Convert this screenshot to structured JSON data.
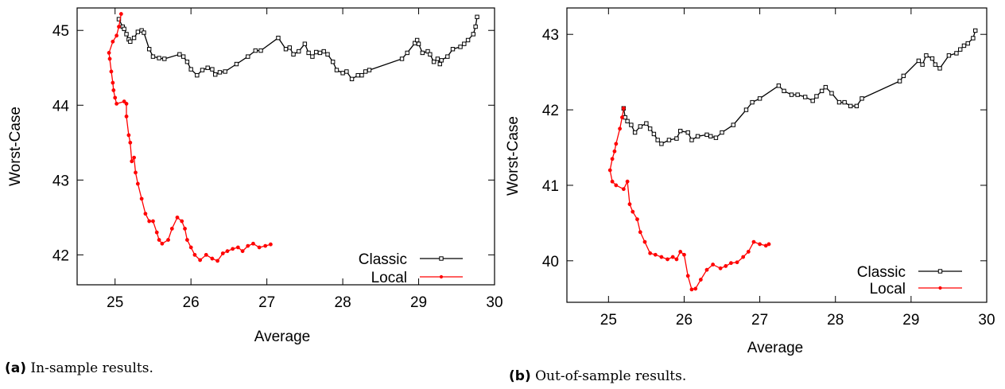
{
  "chart_data": [
    {
      "type": "line",
      "caption_label": "(a)",
      "caption_text": "In-sample results.",
      "xlabel": "Average",
      "ylabel": "Worst-Case",
      "xlim": [
        24.5,
        30
      ],
      "ylim": [
        41.6,
        45.3
      ],
      "xticks": [
        25,
        26,
        27,
        28,
        29,
        30
      ],
      "yticks": [
        42,
        43,
        44,
        45
      ],
      "legend_position": "bottom-right",
      "series": [
        {
          "name": "Classic",
          "color": "#000000",
          "marker": "square",
          "points": [
            [
              25.05,
              45.15
            ],
            [
              25.1,
              45.05
            ],
            [
              25.12,
              45.02
            ],
            [
              25.15,
              44.95
            ],
            [
              25.18,
              44.88
            ],
            [
              25.2,
              44.85
            ],
            [
              25.25,
              44.9
            ],
            [
              25.3,
              44.98
            ],
            [
              25.35,
              45.0
            ],
            [
              25.38,
              44.97
            ],
            [
              25.45,
              44.75
            ],
            [
              25.5,
              44.65
            ],
            [
              25.58,
              44.63
            ],
            [
              25.65,
              44.62
            ],
            [
              25.85,
              44.68
            ],
            [
              25.9,
              44.65
            ],
            [
              25.95,
              44.58
            ],
            [
              26.0,
              44.48
            ],
            [
              26.08,
              44.4
            ],
            [
              26.15,
              44.47
            ],
            [
              26.22,
              44.5
            ],
            [
              26.28,
              44.48
            ],
            [
              26.32,
              44.41
            ],
            [
              26.38,
              44.44
            ],
            [
              26.45,
              44.45
            ],
            [
              26.6,
              44.55
            ],
            [
              26.75,
              44.65
            ],
            [
              26.85,
              44.73
            ],
            [
              26.92,
              44.73
            ],
            [
              27.15,
              44.9
            ],
            [
              27.25,
              44.75
            ],
            [
              27.3,
              44.77
            ],
            [
              27.35,
              44.68
            ],
            [
              27.42,
              44.72
            ],
            [
              27.5,
              44.82
            ],
            [
              27.55,
              44.7
            ],
            [
              27.6,
              44.65
            ],
            [
              27.65,
              44.71
            ],
            [
              27.7,
              44.7
            ],
            [
              27.75,
              44.72
            ],
            [
              27.8,
              44.68
            ],
            [
              27.87,
              44.58
            ],
            [
              27.92,
              44.47
            ],
            [
              28.0,
              44.43
            ],
            [
              28.05,
              44.45
            ],
            [
              28.12,
              44.35
            ],
            [
              28.2,
              44.4
            ],
            [
              28.25,
              44.4
            ],
            [
              28.3,
              44.45
            ],
            [
              28.35,
              44.47
            ],
            [
              28.78,
              44.62
            ],
            [
              28.85,
              44.7
            ],
            [
              28.95,
              44.83
            ],
            [
              28.98,
              44.87
            ],
            [
              29.0,
              44.82
            ],
            [
              29.05,
              44.7
            ],
            [
              29.12,
              44.72
            ],
            [
              29.15,
              44.68
            ],
            [
              29.2,
              44.58
            ],
            [
              29.25,
              44.62
            ],
            [
              29.28,
              44.55
            ],
            [
              29.3,
              44.6
            ],
            [
              29.38,
              44.65
            ],
            [
              29.45,
              44.75
            ],
            [
              29.55,
              44.78
            ],
            [
              29.6,
              44.82
            ],
            [
              29.65,
              44.87
            ],
            [
              29.72,
              44.95
            ],
            [
              29.75,
              45.05
            ],
            [
              29.77,
              45.18
            ]
          ]
        },
        {
          "name": "Local",
          "color": "#ff0000",
          "marker": "circle",
          "points": [
            [
              25.08,
              45.22
            ],
            [
              25.05,
              45.05
            ],
            [
              25.02,
              44.93
            ],
            [
              24.97,
              44.85
            ],
            [
              24.92,
              44.7
            ],
            [
              24.93,
              44.62
            ],
            [
              24.95,
              44.45
            ],
            [
              24.97,
              44.3
            ],
            [
              24.98,
              44.2
            ],
            [
              25.0,
              44.1
            ],
            [
              25.02,
              44.02
            ],
            [
              25.12,
              44.05
            ],
            [
              25.15,
              44.02
            ],
            [
              25.15,
              43.85
            ],
            [
              25.18,
              43.6
            ],
            [
              25.2,
              43.5
            ],
            [
              25.22,
              43.25
            ],
            [
              25.25,
              43.3
            ],
            [
              25.27,
              43.1
            ],
            [
              25.3,
              42.95
            ],
            [
              25.35,
              42.75
            ],
            [
              25.4,
              42.55
            ],
            [
              25.45,
              42.45
            ],
            [
              25.5,
              42.45
            ],
            [
              25.55,
              42.3
            ],
            [
              25.58,
              42.2
            ],
            [
              25.62,
              42.15
            ],
            [
              25.7,
              42.2
            ],
            [
              25.75,
              42.35
            ],
            [
              25.82,
              42.5
            ],
            [
              25.88,
              42.45
            ],
            [
              25.92,
              42.35
            ],
            [
              25.95,
              42.2
            ],
            [
              26.0,
              42.1
            ],
            [
              26.05,
              42.0
            ],
            [
              26.12,
              41.93
            ],
            [
              26.2,
              42.0
            ],
            [
              26.28,
              41.95
            ],
            [
              26.35,
              41.92
            ],
            [
              26.42,
              42.02
            ],
            [
              26.48,
              42.05
            ],
            [
              26.55,
              42.08
            ],
            [
              26.62,
              42.1
            ],
            [
              26.68,
              42.05
            ],
            [
              26.75,
              42.12
            ],
            [
              26.82,
              42.15
            ],
            [
              26.9,
              42.1
            ],
            [
              26.98,
              42.12
            ],
            [
              27.05,
              42.14
            ]
          ]
        }
      ]
    },
    {
      "type": "line",
      "caption_label": "(b)",
      "caption_text": "Out-of-sample results.",
      "xlabel": "Average",
      "ylabel": "Worst-Case",
      "xlim": [
        24.45,
        30
      ],
      "ylim": [
        39.45,
        43.35
      ],
      "xticks": [
        25,
        26,
        27,
        28,
        29,
        30
      ],
      "yticks": [
        40,
        41,
        42,
        43
      ],
      "legend_position": "bottom-right",
      "series": [
        {
          "name": "Classic",
          "color": "#000000",
          "marker": "square",
          "points": [
            [
              25.2,
              42.02
            ],
            [
              25.22,
              41.9
            ],
            [
              25.25,
              41.85
            ],
            [
              25.3,
              41.8
            ],
            [
              25.35,
              41.7
            ],
            [
              25.42,
              41.78
            ],
            [
              25.5,
              41.82
            ],
            [
              25.55,
              41.75
            ],
            [
              25.6,
              41.68
            ],
            [
              25.65,
              41.6
            ],
            [
              25.7,
              41.55
            ],
            [
              25.8,
              41.6
            ],
            [
              25.9,
              41.62
            ],
            [
              25.95,
              41.72
            ],
            [
              26.05,
              41.7
            ],
            [
              26.1,
              41.6
            ],
            [
              26.18,
              41.65
            ],
            [
              26.3,
              41.67
            ],
            [
              26.35,
              41.65
            ],
            [
              26.42,
              41.63
            ],
            [
              26.5,
              41.7
            ],
            [
              26.65,
              41.8
            ],
            [
              26.82,
              42.0
            ],
            [
              26.9,
              42.1
            ],
            [
              27.0,
              42.15
            ],
            [
              27.25,
              42.32
            ],
            [
              27.32,
              42.25
            ],
            [
              27.42,
              42.2
            ],
            [
              27.5,
              42.2
            ],
            [
              27.6,
              42.17
            ],
            [
              27.7,
              42.12
            ],
            [
              27.75,
              42.18
            ],
            [
              27.82,
              42.25
            ],
            [
              27.87,
              42.3
            ],
            [
              27.95,
              42.22
            ],
            [
              28.05,
              42.1
            ],
            [
              28.12,
              42.1
            ],
            [
              28.2,
              42.05
            ],
            [
              28.28,
              42.05
            ],
            [
              28.35,
              42.15
            ],
            [
              28.85,
              42.38
            ],
            [
              28.9,
              42.45
            ],
            [
              29.1,
              42.65
            ],
            [
              29.15,
              42.6
            ],
            [
              29.2,
              42.72
            ],
            [
              29.28,
              42.68
            ],
            [
              29.32,
              42.6
            ],
            [
              29.38,
              42.55
            ],
            [
              29.5,
              42.72
            ],
            [
              29.6,
              42.75
            ],
            [
              29.65,
              42.8
            ],
            [
              29.7,
              42.85
            ],
            [
              29.75,
              42.88
            ],
            [
              29.82,
              42.95
            ],
            [
              29.85,
              43.05
            ]
          ]
        },
        {
          "name": "Local",
          "color": "#ff0000",
          "marker": "circle",
          "points": [
            [
              25.2,
              42.02
            ],
            [
              25.18,
              41.9
            ],
            [
              25.15,
              41.75
            ],
            [
              25.1,
              41.55
            ],
            [
              25.08,
              41.45
            ],
            [
              25.05,
              41.35
            ],
            [
              25.02,
              41.2
            ],
            [
              25.05,
              41.05
            ],
            [
              25.1,
              41.0
            ],
            [
              25.2,
              40.95
            ],
            [
              25.25,
              41.05
            ],
            [
              25.28,
              40.75
            ],
            [
              25.32,
              40.65
            ],
            [
              25.38,
              40.55
            ],
            [
              25.42,
              40.38
            ],
            [
              25.48,
              40.25
            ],
            [
              25.55,
              40.1
            ],
            [
              25.62,
              40.08
            ],
            [
              25.7,
              40.05
            ],
            [
              25.78,
              40.02
            ],
            [
              25.85,
              40.05
            ],
            [
              25.9,
              40.02
            ],
            [
              25.95,
              40.12
            ],
            [
              26.0,
              40.08
            ],
            [
              26.05,
              39.8
            ],
            [
              26.1,
              39.62
            ],
            [
              26.15,
              39.63
            ],
            [
              26.22,
              39.75
            ],
            [
              26.3,
              39.88
            ],
            [
              26.38,
              39.95
            ],
            [
              26.48,
              39.9
            ],
            [
              26.55,
              39.93
            ],
            [
              26.62,
              39.97
            ],
            [
              26.7,
              39.98
            ],
            [
              26.78,
              40.05
            ],
            [
              26.85,
              40.12
            ],
            [
              26.92,
              40.25
            ],
            [
              27.0,
              40.22
            ],
            [
              27.08,
              40.2
            ],
            [
              27.12,
              40.22
            ]
          ]
        }
      ]
    }
  ]
}
